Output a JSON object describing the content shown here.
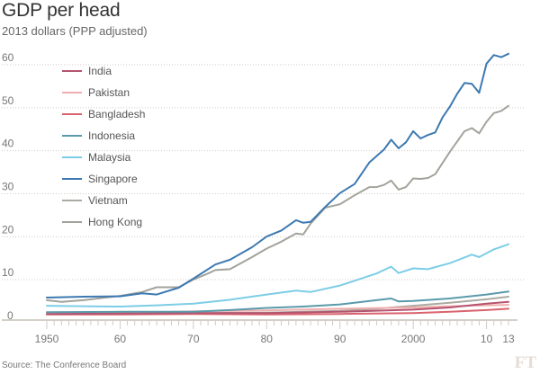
{
  "header": {
    "title": "GDP per head",
    "subtitle": "2013 dollars (PPP adjusted)"
  },
  "footer": {
    "source": "Source: The Conference Board",
    "logo": "FT"
  },
  "chart_data": {
    "type": "line",
    "title": "GDP per head",
    "subtitle": "2013 dollars (PPP adjusted)",
    "xlabel": "",
    "ylabel": "",
    "xlim": [
      1950,
      2013
    ],
    "ylim": [
      0,
      60
    ],
    "grid": true,
    "legend_position": "top-left",
    "y_ticks": [
      0,
      10,
      20,
      30,
      40,
      50,
      60
    ],
    "y_tick_labels": [
      "0",
      "10",
      "20",
      "30",
      "40",
      "50",
      "60"
    ],
    "x_ticks": [
      1950,
      1960,
      1970,
      1980,
      1990,
      2000,
      2010,
      2013
    ],
    "x_tick_labels": [
      "1950",
      "60",
      "70",
      "80",
      "90",
      "2000",
      "10",
      "13"
    ],
    "series": [
      {
        "name": "India",
        "color": "#b5546f",
        "x": [
          1950,
          1960,
          1970,
          1980,
          1990,
          2000,
          2005,
          2010,
          2013
        ],
        "values": [
          0.8,
          0.9,
          1.0,
          1.0,
          1.3,
          1.8,
          2.3,
          3.2,
          3.6
        ]
      },
      {
        "name": "Pakistan",
        "color": "#f1aeae",
        "x": [
          1950,
          1960,
          1970,
          1980,
          1990,
          2000,
          2005,
          2010,
          2013
        ],
        "values": [
          1.0,
          1.0,
          1.4,
          1.6,
          2.0,
          2.3,
          2.6,
          2.8,
          2.9
        ]
      },
      {
        "name": "Bangladesh",
        "color": "#d9636d",
        "x": [
          1950,
          1960,
          1970,
          1980,
          1990,
          2000,
          2005,
          2010,
          2013
        ],
        "values": [
          0.7,
          0.7,
          0.8,
          0.7,
          0.8,
          1.0,
          1.3,
          1.7,
          2.0
        ]
      },
      {
        "name": "Indonesia",
        "color": "#5a9aaa",
        "x": [
          1950,
          1960,
          1970,
          1975,
          1980,
          1985,
          1990,
          1995,
          1997,
          1998,
          2000,
          2005,
          2010,
          2013
        ],
        "values": [
          1.2,
          1.3,
          1.3,
          1.7,
          2.2,
          2.5,
          3.0,
          4.0,
          4.4,
          3.7,
          3.8,
          4.4,
          5.3,
          6.0
        ]
      },
      {
        "name": "Malaysia",
        "color": "#7dcde6",
        "x": [
          1950,
          1955,
          1960,
          1965,
          1970,
          1975,
          1980,
          1984,
          1986,
          1990,
          1995,
          1997,
          1998,
          2000,
          2002,
          2005,
          2008,
          2009,
          2011,
          2013
        ],
        "values": [
          2.7,
          2.6,
          2.5,
          2.8,
          3.2,
          4.1,
          5.3,
          6.2,
          5.9,
          7.4,
          10.2,
          11.8,
          10.3,
          11.4,
          11.2,
          12.6,
          14.6,
          14.0,
          15.8,
          17.0
        ]
      },
      {
        "name": "Singapore",
        "color": "#3d79b1",
        "x": [
          1950,
          1955,
          1960,
          1963,
          1965,
          1968,
          1970,
          1973,
          1975,
          1978,
          1980,
          1982,
          1984,
          1985,
          1986,
          1988,
          1990,
          1992,
          1994,
          1996,
          1997,
          1998,
          1999,
          2000,
          2001,
          2002,
          2003,
          2004,
          2005,
          2006,
          2007,
          2008,
          2009,
          2010,
          2011,
          2012,
          2013
        ],
        "values": [
          4.6,
          4.8,
          4.9,
          5.6,
          5.3,
          6.9,
          9.0,
          12.3,
          13.4,
          16.3,
          18.8,
          20.2,
          22.6,
          22.0,
          22.2,
          25.7,
          28.9,
          31.0,
          36.0,
          39.0,
          41.3,
          39.3,
          40.7,
          43.3,
          41.6,
          42.4,
          43.0,
          46.5,
          49.0,
          52.0,
          54.5,
          54.3,
          52.2,
          59.0,
          61.0,
          60.5,
          61.3
        ]
      },
      {
        "name": "Vietnam",
        "color": "#aaaaa3",
        "x": [
          1950,
          1960,
          1970,
          1980,
          1985,
          1990,
          1995,
          2000,
          2005,
          2010,
          2013
        ],
        "values": [
          0.9,
          1.0,
          1.0,
          1.1,
          1.3,
          1.5,
          2.0,
          2.7,
          3.4,
          4.2,
          4.8
        ]
      },
      {
        "name": "Hong Kong",
        "color": "#a3a39c",
        "x": [
          1950,
          1952,
          1955,
          1960,
          1963,
          1965,
          1968,
          1970,
          1972,
          1973,
          1975,
          1978,
          1980,
          1982,
          1984,
          1985,
          1986,
          1988,
          1990,
          1992,
          1994,
          1995,
          1996,
          1997,
          1998,
          1999,
          2000,
          2001,
          2002,
          2003,
          2005,
          2007,
          2008,
          2009,
          2010,
          2011,
          2012,
          2013
        ],
        "values": [
          4.0,
          3.6,
          4.0,
          5.0,
          5.9,
          7.0,
          7.0,
          8.8,
          10.2,
          11.0,
          11.2,
          14.0,
          16.0,
          17.6,
          19.5,
          19.3,
          21.8,
          25.5,
          26.3,
          28.4,
          30.3,
          30.3,
          30.8,
          31.8,
          29.7,
          30.3,
          32.3,
          32.2,
          32.4,
          33.3,
          38.5,
          43.3,
          44.0,
          42.8,
          45.5,
          47.5,
          48.0,
          49.2
        ]
      }
    ]
  }
}
